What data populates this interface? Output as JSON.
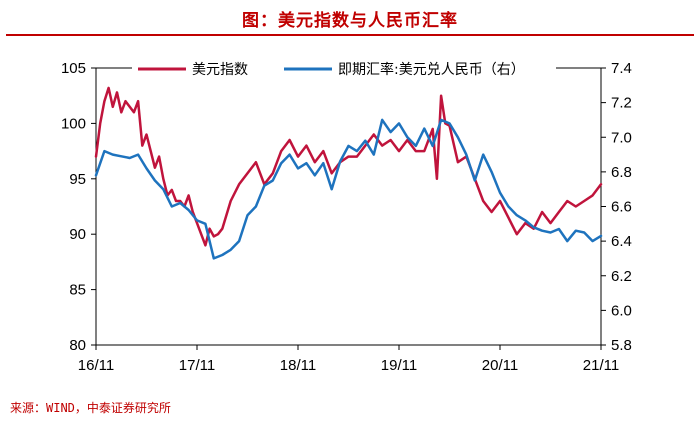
{
  "title": "图：美元指数与人民币汇率",
  "source": "来源：WIND，中泰证券研究所",
  "colors": {
    "title": "#c00000",
    "series_dxy": "#c0143c",
    "series_cny": "#1e73be"
  },
  "chart_data": {
    "type": "line",
    "x_labels": [
      "16/11",
      "17/11",
      "18/11",
      "19/11",
      "20/11",
      "21/11"
    ],
    "x_range": [
      0,
      60
    ],
    "y_left": {
      "ticks": [
        80,
        85,
        90,
        95,
        100,
        105
      ],
      "range": [
        80,
        105
      ]
    },
    "y_right": {
      "ticks": [
        "5.8",
        "6.0",
        "6.2",
        "6.4",
        "6.6",
        "6.8",
        "7.0",
        "7.2",
        "7.4"
      ],
      "range": [
        5.8,
        7.4
      ]
    },
    "legend": {
      "position": "top",
      "entries": [
        "美元指数",
        "即期汇率:美元兑人民币（右）"
      ]
    },
    "series": [
      {
        "name": "美元指数",
        "axis": "left",
        "x": [
          0,
          0.5,
          1,
          1.5,
          2,
          2.5,
          3,
          3.5,
          4,
          4.5,
          5,
          5.5,
          6,
          6.5,
          7,
          7.5,
          8,
          8.5,
          9,
          9.5,
          10,
          10.5,
          11,
          11.5,
          12,
          12.5,
          13,
          13.5,
          14,
          14.5,
          15,
          16,
          17,
          18,
          19,
          20,
          21,
          22,
          23,
          24,
          25,
          26,
          27,
          28,
          29,
          30,
          31,
          32,
          33,
          34,
          35,
          36,
          37,
          38,
          39,
          40,
          40.5,
          41,
          41.5,
          42,
          43,
          44,
          45,
          46,
          47,
          48,
          49,
          50,
          51,
          52,
          53,
          54,
          55,
          56,
          57,
          58,
          59,
          60
        ],
        "values": [
          97,
          100,
          102,
          103.2,
          101.5,
          102.8,
          101,
          102,
          101.5,
          101,
          102,
          98,
          99,
          97.5,
          96,
          97,
          95,
          93.5,
          94,
          93,
          93,
          92.5,
          93.5,
          92,
          91,
          90,
          89,
          90.5,
          89.8,
          90,
          90.5,
          93,
          94.5,
          95.5,
          96.5,
          94.5,
          95.5,
          97.5,
          98.5,
          97,
          98,
          96.5,
          97.5,
          95.5,
          96.5,
          97,
          97,
          98,
          99,
          98,
          98.5,
          97.5,
          98.5,
          97.5,
          97.5,
          99.5,
          95,
          102.5,
          100,
          99.8,
          96.5,
          97,
          95,
          93,
          92,
          93,
          91.5,
          90,
          91,
          90.5,
          92,
          91,
          92,
          93,
          92.5,
          93,
          93.5,
          94.5
        ]
      },
      {
        "name": "即期汇率:美元兑人民币（右）",
        "axis": "right",
        "x": [
          0,
          1,
          2,
          3,
          4,
          5,
          6,
          7,
          8,
          9,
          10,
          11,
          12,
          13,
          14,
          15,
          16,
          17,
          18,
          19,
          20,
          21,
          22,
          23,
          24,
          25,
          26,
          27,
          28,
          29,
          30,
          31,
          32,
          33,
          34,
          35,
          36,
          37,
          38,
          39,
          40,
          41,
          42,
          43,
          44,
          45,
          46,
          47,
          48,
          49,
          50,
          51,
          52,
          53,
          54,
          55,
          56,
          57,
          58,
          59,
          60
        ],
        "values": [
          6.78,
          6.92,
          6.9,
          6.89,
          6.88,
          6.9,
          6.82,
          6.75,
          6.7,
          6.6,
          6.62,
          6.58,
          6.52,
          6.5,
          6.3,
          6.32,
          6.35,
          6.4,
          6.55,
          6.6,
          6.72,
          6.75,
          6.85,
          6.9,
          6.82,
          6.85,
          6.78,
          6.85,
          6.7,
          6.86,
          6.95,
          6.92,
          6.98,
          6.9,
          7.1,
          7.03,
          7.08,
          7.0,
          6.95,
          7.05,
          6.95,
          7.1,
          7.08,
          7.0,
          6.9,
          6.75,
          6.9,
          6.8,
          6.68,
          6.6,
          6.55,
          6.52,
          6.48,
          6.46,
          6.45,
          6.47,
          6.4,
          6.46,
          6.45,
          6.4,
          6.43
        ]
      }
    ]
  }
}
